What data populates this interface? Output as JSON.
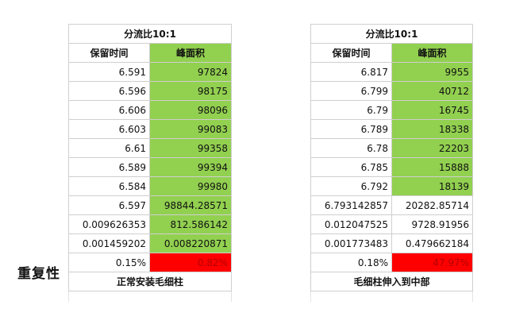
{
  "side_label": "重复性",
  "left_table": {
    "caption": "分流比10:1",
    "col_time": "保留时间",
    "col_area": "峰面积",
    "rows": [
      {
        "time": "6.591",
        "area": "97824"
      },
      {
        "time": "6.596",
        "area": "98175"
      },
      {
        "time": "6.606",
        "area": "98096"
      },
      {
        "time": "6.603",
        "area": "99083"
      },
      {
        "time": "6.61",
        "area": "99358"
      },
      {
        "time": "6.589",
        "area": "99394"
      },
      {
        "time": "6.584",
        "area": "99980"
      },
      {
        "time": "6.597",
        "area": "98844.28571"
      },
      {
        "time": "0.009626353",
        "area": "812.586142"
      },
      {
        "time": "0.001459202",
        "area": "0.008220871"
      }
    ],
    "rsd": {
      "time": "0.15%",
      "area": "0.82%"
    },
    "footer": "正常安装毛细柱"
  },
  "right_table": {
    "caption": "分流比10:1",
    "col_time": "保留时间",
    "col_area": "峰面积",
    "rows": [
      {
        "time": "6.817",
        "area": "9955"
      },
      {
        "time": "6.799",
        "area": "40712"
      },
      {
        "time": "6.79",
        "area": "16745"
      },
      {
        "time": "6.789",
        "area": "18338"
      },
      {
        "time": "6.78",
        "area": "22203"
      },
      {
        "time": "6.785",
        "area": "15888"
      },
      {
        "time": "6.792",
        "area": "18139"
      },
      {
        "time": "6.793142857",
        "area": "20282.85714"
      },
      {
        "time": "0.012047525",
        "area": "9728.91956"
      },
      {
        "time": "0.001773483",
        "area": "0.479662184"
      }
    ],
    "rsd": {
      "time": "0.18%",
      "area": "47.97%"
    },
    "footer": "毛细柱伸入到中部"
  },
  "colors": {
    "green_fill": "#92d050",
    "red_fill": "#ff0000"
  }
}
